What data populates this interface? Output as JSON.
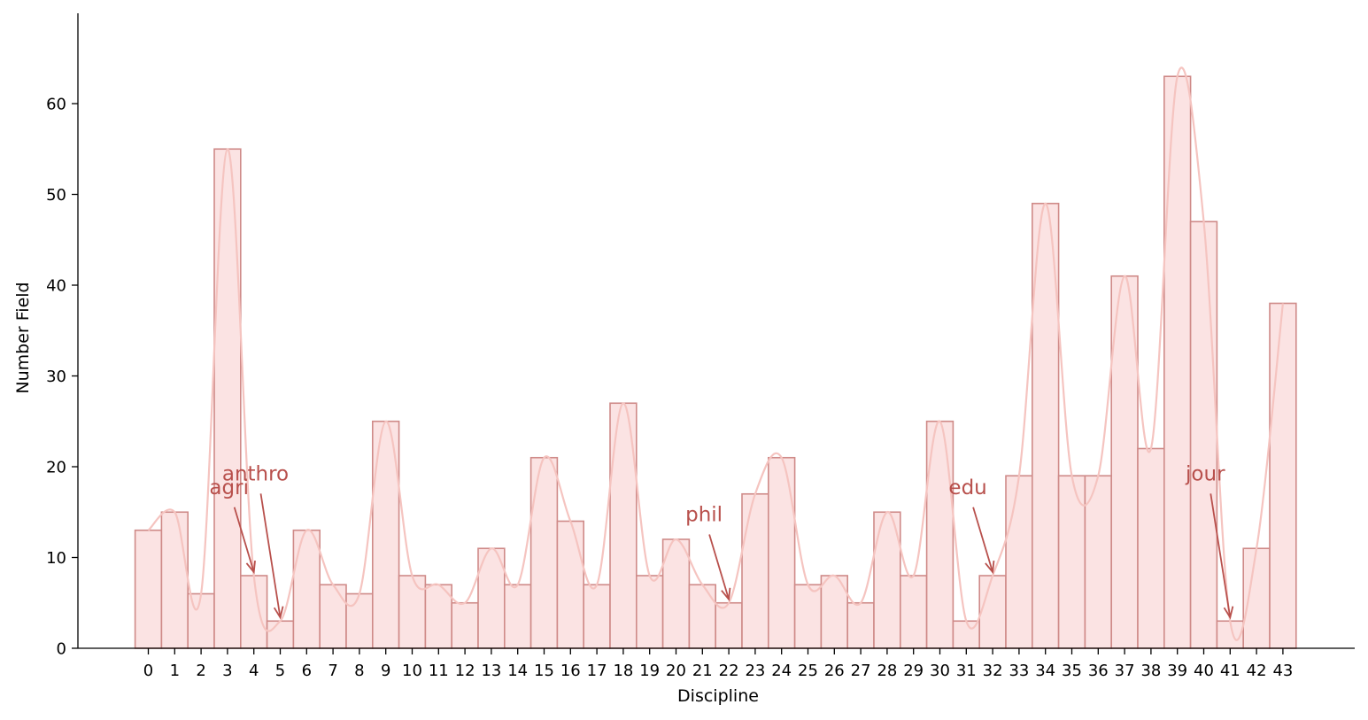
{
  "chart_data": {
    "type": "bar",
    "xlabel": "Discipline",
    "ylabel": "Number Field",
    "categories": [
      "0",
      "1",
      "2",
      "3",
      "4",
      "5",
      "6",
      "7",
      "8",
      "9",
      "10",
      "11",
      "12",
      "13",
      "14",
      "15",
      "16",
      "17",
      "18",
      "19",
      "20",
      "21",
      "22",
      "23",
      "24",
      "25",
      "26",
      "27",
      "28",
      "29",
      "30",
      "31",
      "32",
      "33",
      "34",
      "35",
      "36",
      "37",
      "38",
      "39",
      "40",
      "41",
      "42",
      "43"
    ],
    "values": [
      13,
      15,
      6,
      55,
      8,
      3,
      13,
      7,
      6,
      25,
      8,
      7,
      5,
      11,
      7,
      21,
      14,
      7,
      27,
      8,
      12,
      7,
      5,
      17,
      21,
      7,
      8,
      5,
      15,
      8,
      25,
      3,
      8,
      19,
      49,
      19,
      19,
      41,
      22,
      63,
      47,
      3,
      11,
      38
    ],
    "ylim": [
      0,
      70
    ],
    "yticks": [
      0,
      10,
      20,
      30,
      40,
      50,
      60
    ],
    "smooth_line": true,
    "grid": false,
    "annotations": [
      {
        "text": "agri",
        "x": 4,
        "y": 8,
        "text_y": 17
      },
      {
        "text": "anthro",
        "x": 5,
        "y": 3,
        "text_y": 18.5
      },
      {
        "text": "phil",
        "x": 22,
        "y": 5,
        "text_y": 14
      },
      {
        "text": "edu",
        "x": 32,
        "y": 8,
        "text_y": 17
      },
      {
        "text": "jour",
        "x": 41,
        "y": 3,
        "text_y": 18.5
      }
    ],
    "colors": {
      "bar_fill": "#fbe3e3",
      "bar_edge": "#cf8a88",
      "line": "#f5c4c0",
      "annotation": "#b8504c",
      "axis": "#000000"
    }
  }
}
